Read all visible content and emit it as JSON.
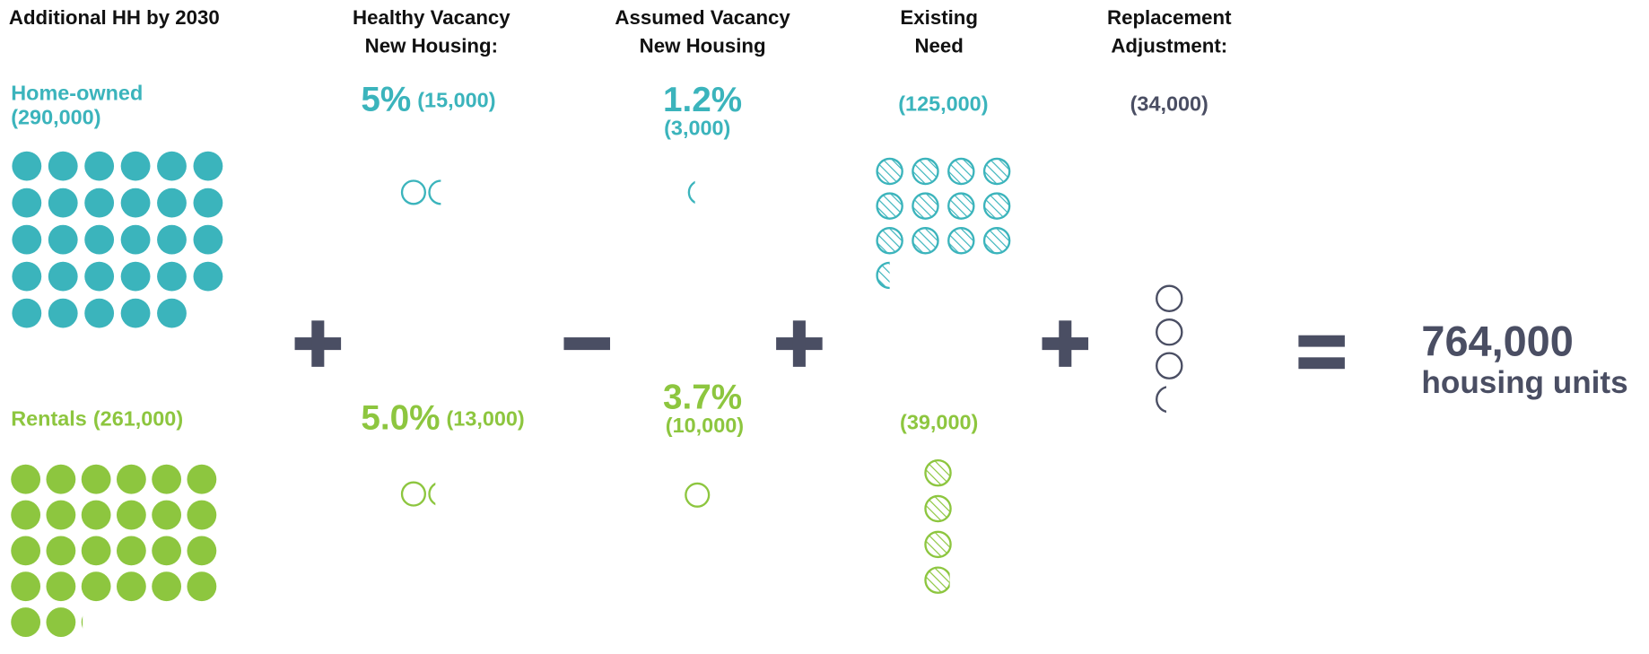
{
  "header": {
    "title": "Additional HH by 2030"
  },
  "columns": [
    {
      "title": [
        "Healthy Vacancy",
        "New Housing:"
      ]
    },
    {
      "title": [
        "Assumed Vacancy",
        "New Housing"
      ]
    },
    {
      "title": [
        "Existing",
        "Need"
      ]
    },
    {
      "title": [
        "Replacement",
        "Adjustment:"
      ]
    }
  ],
  "owned": {
    "label": "Home-owned",
    "count": "(290,000)",
    "healthy_pct": "5%",
    "healthy_count": "(15,000)",
    "assumed_pct": "1.2%",
    "assumed_count": "(3,000)",
    "existing": "(125,000)"
  },
  "rentals": {
    "label": "Rentals",
    "count": "(261,000)",
    "healthy_pct": "5.0%",
    "healthy_count": "(13,000)",
    "assumed_pct": "3.7%",
    "assumed_count": "(10,000)",
    "existing": "(39,000)"
  },
  "replacement": "(34,000)",
  "result": {
    "value": "764,000",
    "label": "housing units"
  }
}
